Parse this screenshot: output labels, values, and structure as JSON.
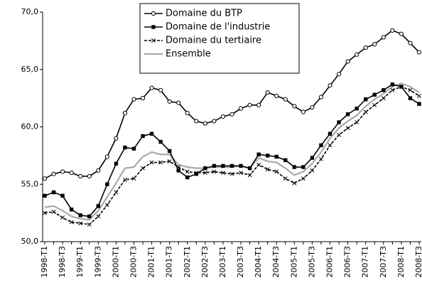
{
  "chart_data": {
    "type": "line",
    "categories": [
      "1998-T1",
      null,
      "1998-T3",
      null,
      "1999-T1",
      null,
      "1999-T3",
      null,
      "2000-T1",
      null,
      "2000-T3",
      null,
      "2001-T1",
      null,
      "2001-T3",
      null,
      "2002-T1",
      null,
      "2002-T3",
      null,
      "2003-T1",
      null,
      "2003-T3",
      null,
      "2004-T1",
      null,
      "2004-T3",
      null,
      "2005-T1",
      null,
      "2005-T3",
      null,
      "2006-T1",
      null,
      "2006-T3",
      null,
      "2007-T1",
      null,
      "2007-T3",
      null,
      "2008-T1",
      null,
      "2008-T3"
    ],
    "series": [
      {
        "name": "Domaine du BTP",
        "color": "#000000",
        "marker": "circle",
        "values": [
          55.5,
          55.9,
          56.1,
          56.0,
          55.7,
          55.7,
          56.2,
          57.4,
          59.0,
          61.2,
          62.4,
          62.5,
          63.4,
          63.2,
          62.2,
          62.1,
          61.2,
          60.5,
          60.3,
          60.5,
          60.9,
          61.1,
          61.6,
          61.9,
          61.9,
          63.0,
          62.7,
          62.4,
          61.8,
          61.3,
          61.7,
          62.6,
          63.6,
          64.6,
          65.7,
          66.3,
          66.9,
          67.2,
          67.8,
          68.4,
          68.1,
          67.3,
          66.5
        ]
      },
      {
        "name": "Domaine de l'industrie",
        "color": "#000000",
        "marker": "square",
        "values": [
          54.0,
          54.3,
          54.0,
          52.8,
          52.3,
          52.2,
          53.1,
          55.0,
          56.8,
          58.2,
          58.1,
          59.2,
          59.4,
          58.7,
          57.9,
          56.2,
          55.6,
          55.9,
          56.4,
          56.6,
          56.6,
          56.6,
          56.6,
          56.4,
          57.6,
          57.5,
          57.4,
          57.1,
          56.5,
          56.5,
          57.3,
          58.4,
          59.4,
          60.4,
          61.1,
          61.6,
          62.4,
          62.8,
          63.2,
          63.7,
          63.5,
          62.5,
          62.0
        ]
      },
      {
        "name": "Domaine du tertiaire",
        "color": "#000000",
        "marker": "cross",
        "dash": true,
        "values": [
          52.5,
          52.6,
          52.1,
          51.7,
          51.6,
          51.5,
          52.2,
          53.2,
          54.3,
          55.4,
          55.5,
          56.4,
          56.9,
          56.9,
          57.0,
          56.5,
          56.1,
          56.0,
          56.0,
          56.1,
          56.0,
          55.9,
          56.0,
          55.8,
          56.7,
          56.3,
          56.1,
          55.5,
          55.1,
          55.5,
          56.2,
          57.2,
          58.4,
          59.3,
          59.9,
          60.4,
          61.3,
          61.9,
          62.5,
          63.2,
          63.5,
          63.2,
          62.7
        ]
      },
      {
        "name": "Ensemble",
        "color": "#aaaaaa",
        "marker": "none",
        "values": [
          53.0,
          53.1,
          52.7,
          52.2,
          52.0,
          51.9,
          52.7,
          53.9,
          55.1,
          56.4,
          56.5,
          57.4,
          57.8,
          57.6,
          57.6,
          56.7,
          56.5,
          56.4,
          56.4,
          56.5,
          56.5,
          56.5,
          56.6,
          56.4,
          57.3,
          57.0,
          56.9,
          56.4,
          55.8,
          56.1,
          56.8,
          57.8,
          59.0,
          59.9,
          60.5,
          61.0,
          61.8,
          62.4,
          62.9,
          63.5,
          63.8,
          63.5,
          63.0
        ]
      }
    ],
    "ylim": [
      50,
      70
    ],
    "yticks": [
      {
        "value": 50,
        "label": "50,0"
      },
      {
        "value": 55,
        "label": "55,0"
      },
      {
        "value": 60,
        "label": "60,0"
      },
      {
        "value": 65,
        "label": "65,0"
      },
      {
        "value": 70,
        "label": "70,0"
      }
    ],
    "grid": false,
    "legend": "upper center"
  }
}
